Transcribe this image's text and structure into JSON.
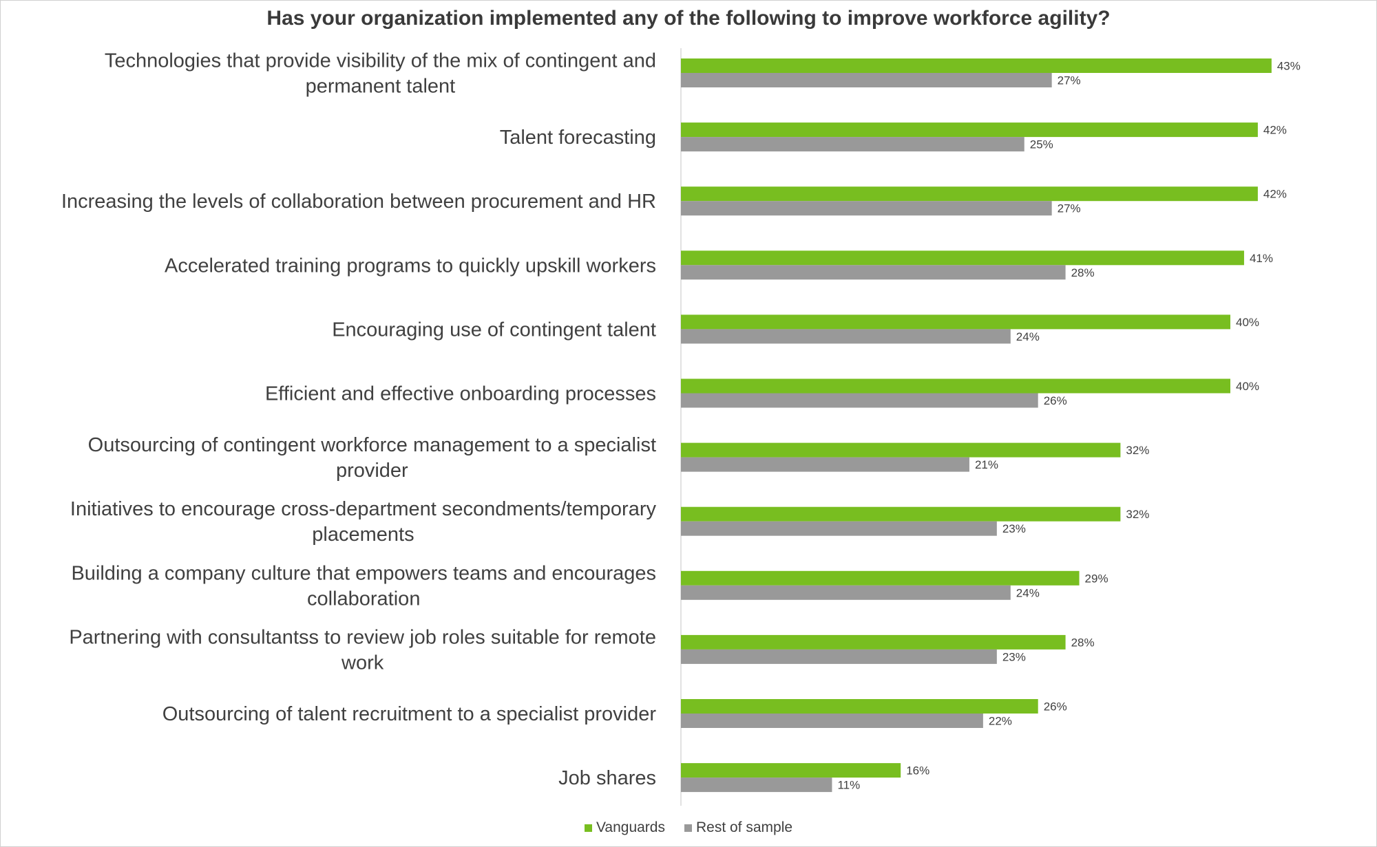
{
  "chart_data": {
    "type": "bar",
    "orientation": "horizontal",
    "title": "Has your organization implemented any of the following to improve workforce agility?",
    "categories": [
      [
        "Technologies that provide visibility of the mix of contingent and",
        "permanent talent"
      ],
      [
        "Talent forecasting"
      ],
      [
        "Increasing the levels of collaboration between procurement and HR"
      ],
      [
        "Accelerated training programs to quickly upskill workers"
      ],
      [
        "Encouraging use of contingent talent"
      ],
      [
        "Efficient and effective onboarding processes"
      ],
      [
        "Outsourcing of contingent workforce management to a specialist",
        "provider"
      ],
      [
        "Initiatives to encourage cross-department secondments/temporary",
        "placements"
      ],
      [
        "Building a company culture that empowers teams and encourages",
        "collaboration"
      ],
      [
        "Partnering with consultantss to review job roles suitable for remote",
        "work"
      ],
      [
        "Outsourcing of talent recruitment to a specialist provider"
      ],
      [
        "Job shares"
      ]
    ],
    "series": [
      {
        "name": "Vanguards",
        "color": "#78be20",
        "values": [
          43,
          42,
          42,
          41,
          40,
          40,
          32,
          32,
          29,
          28,
          26,
          16
        ]
      },
      {
        "name": "Rest of sample",
        "color": "#999999",
        "values": [
          27,
          25,
          27,
          28,
          24,
          26,
          21,
          23,
          24,
          23,
          22,
          11
        ]
      }
    ],
    "value_suffix": "%",
    "xlim": [
      0,
      50
    ],
    "grid": false,
    "legend_position": "bottom"
  }
}
